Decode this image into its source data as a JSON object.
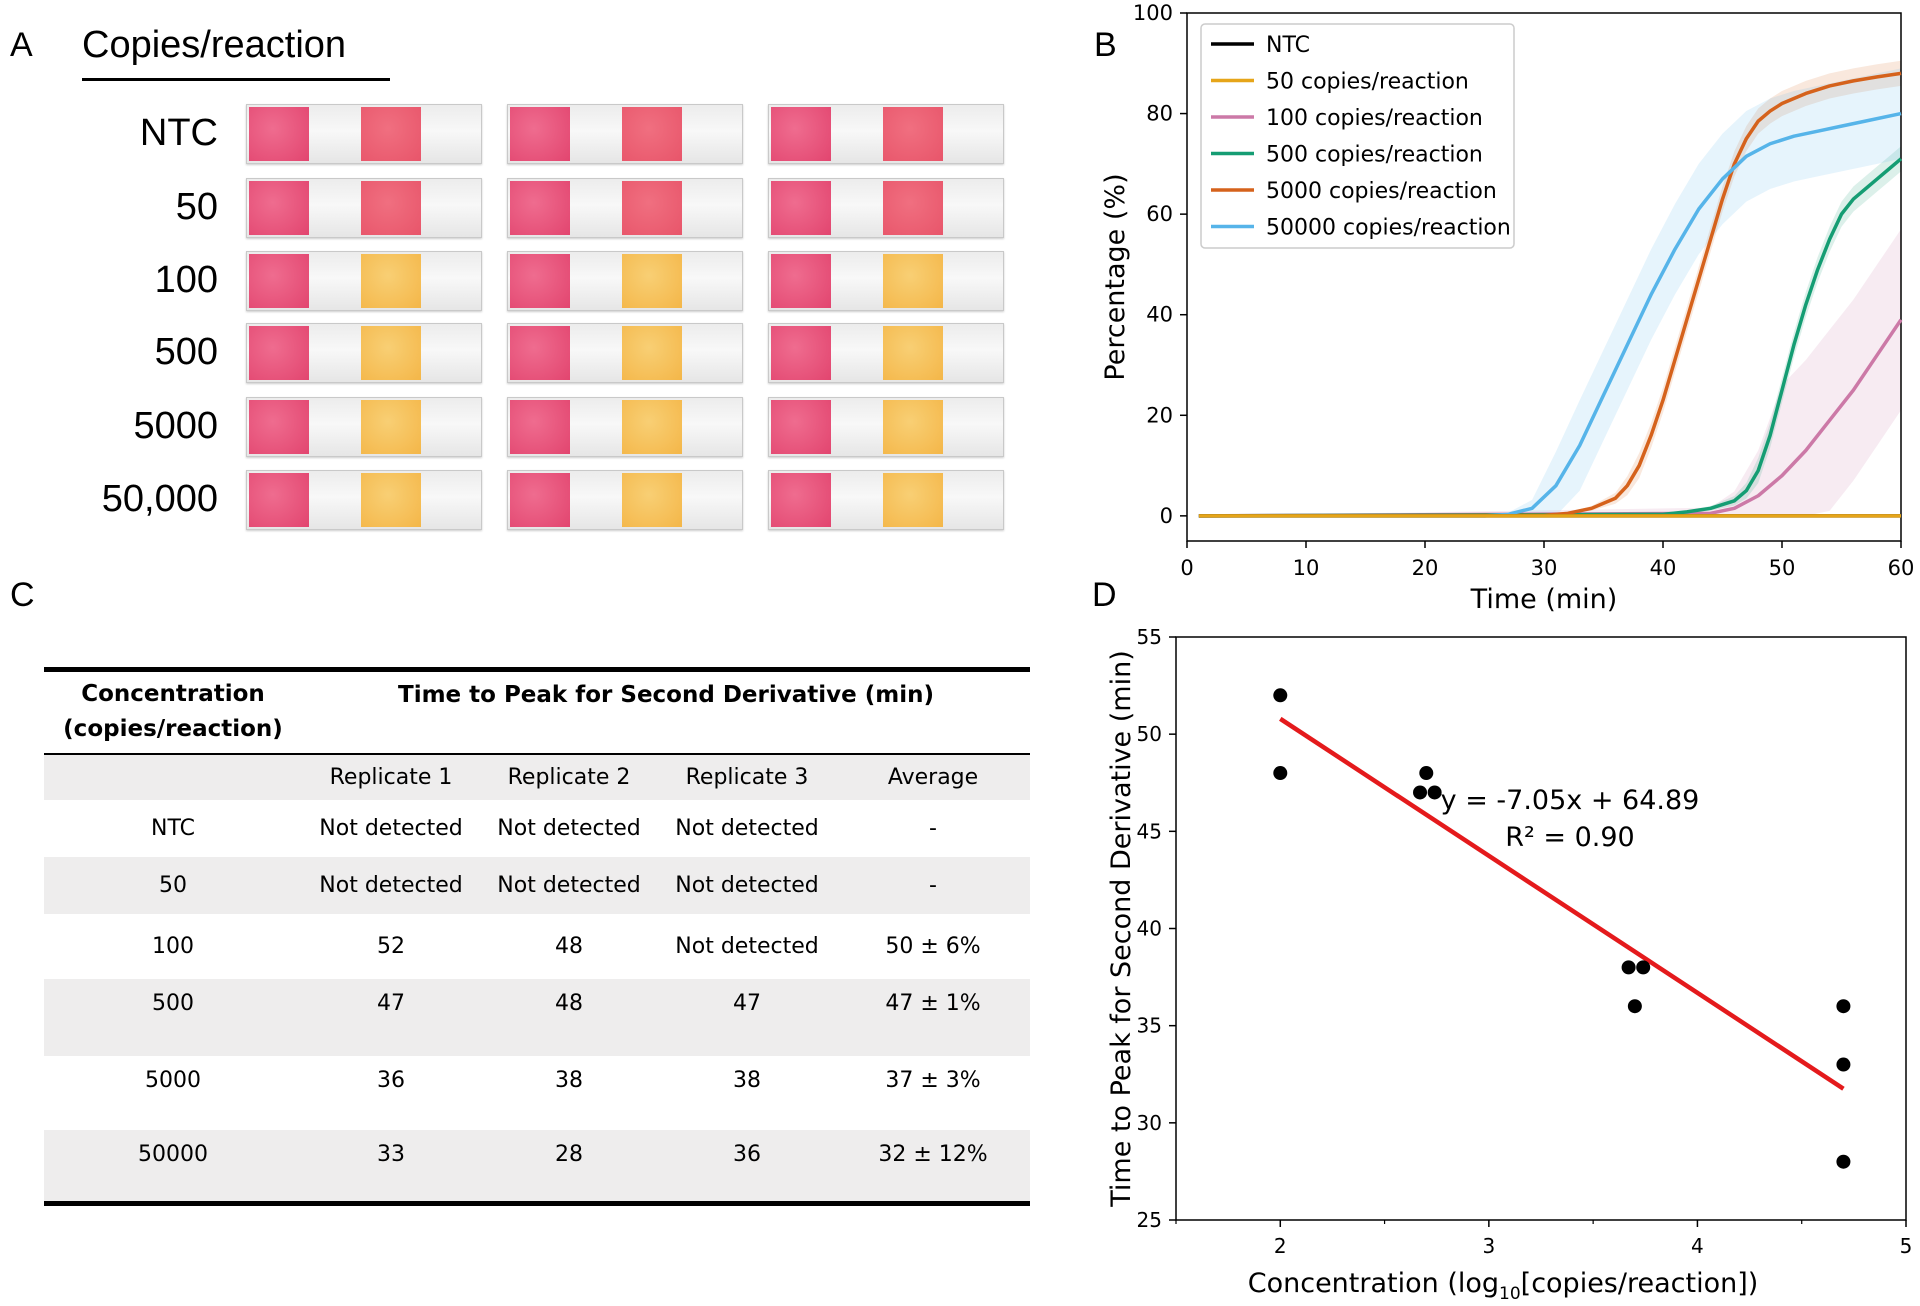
{
  "panels": {
    "a": "A",
    "b": "B",
    "c": "C",
    "d": "D"
  },
  "panel_a": {
    "title": "Copies/reaction",
    "rows": [
      {
        "label": "NTC",
        "result": "negative"
      },
      {
        "label": "50",
        "result": "negative"
      },
      {
        "label": "100",
        "result": "positive"
      },
      {
        "label": "500",
        "result": "positive"
      },
      {
        "label": "5000",
        "result": "positive"
      },
      {
        "label": "50,000",
        "result": "positive"
      }
    ],
    "colors": {
      "control_pad": "#e2456f",
      "negative_test_pad": "#e8556a",
      "positive_test_pad": "#f4b648",
      "strip": "#f1f1f1"
    }
  },
  "chart_data": [
    {
      "type": "line",
      "panel": "B",
      "title": "",
      "xlabel": "Time (min)",
      "ylabel": "Percentage (%)",
      "xlim": [
        0,
        60
      ],
      "ylim": [
        -5,
        100
      ],
      "xticks": [
        0,
        10,
        20,
        30,
        40,
        50,
        60
      ],
      "yticks": [
        0,
        20,
        40,
        60,
        80,
        100
      ],
      "legend_position": "top-left",
      "series": [
        {
          "name": "NTC",
          "color": "#000000",
          "x": [
            1,
            60
          ],
          "y": [
            0,
            0
          ],
          "band": null
        },
        {
          "name": "50 copies/reaction",
          "color": "#e6a519",
          "x": [
            1,
            60
          ],
          "y": [
            0,
            0
          ],
          "band": null
        },
        {
          "name": "100 copies/reaction",
          "color": "#cc79a7",
          "x": [
            1,
            44,
            46,
            48,
            50,
            52,
            54,
            56,
            58,
            60
          ],
          "y": [
            0,
            0.5,
            1.5,
            4,
            8,
            13,
            19,
            25,
            32,
            39
          ],
          "band": 18
        },
        {
          "name": "500 copies/reaction",
          "color": "#159d73",
          "x": [
            1,
            40,
            42,
            44,
            46,
            47,
            48,
            49,
            50,
            51,
            52,
            53,
            54,
            55,
            56,
            57,
            58,
            59,
            60
          ],
          "y": [
            0,
            0.3,
            0.8,
            1.5,
            3,
            5,
            9,
            16,
            25,
            34,
            42,
            49,
            55,
            60,
            63,
            65,
            67,
            69,
            71
          ],
          "band": 2.5
        },
        {
          "name": "5000 copies/reaction",
          "color": "#d5621c",
          "x": [
            1,
            30,
            32,
            34,
            36,
            37,
            38,
            39,
            40,
            41,
            42,
            43,
            44,
            45,
            46,
            47,
            48,
            49,
            50,
            52,
            54,
            56,
            58,
            60
          ],
          "y": [
            0,
            0.1,
            0.5,
            1.5,
            3.5,
            6,
            10,
            16,
            23,
            31,
            39,
            47,
            55,
            63,
            70,
            75,
            78.5,
            80.5,
            82,
            84,
            85.5,
            86.5,
            87.3,
            88
          ],
          "band": 2.5
        },
        {
          "name": "50000 copies/reaction",
          "color": "#56b4e9",
          "x": [
            1,
            25,
            27,
            29,
            31,
            33,
            35,
            37,
            39,
            41,
            43,
            45,
            47,
            49,
            51,
            53,
            55,
            57,
            60
          ],
          "y": [
            0,
            0,
            0.3,
            1.5,
            6,
            14,
            24,
            34,
            44,
            53,
            61,
            67,
            71.5,
            74,
            75.5,
            76.5,
            77.5,
            78.5,
            80
          ],
          "band": 9
        }
      ]
    },
    {
      "type": "scatter",
      "panel": "D",
      "xlabel": "Concentration (log10[copies/reaction])",
      "xlabel_parts": {
        "pre": "Concentration (log",
        "sub": "10",
        "post": "[copies/reaction])"
      },
      "ylabel": "Time to Peak for Second Derivative (min)",
      "xlim": [
        1.5,
        5
      ],
      "ylim": [
        25,
        55
      ],
      "xticks": [
        2,
        3,
        4,
        5
      ],
      "yticks": [
        25,
        30,
        35,
        40,
        45,
        50,
        55
      ],
      "points": [
        {
          "x": 2.0,
          "y": 52
        },
        {
          "x": 2.0,
          "y": 48
        },
        {
          "x": 2.7,
          "y": 48
        },
        {
          "x": 2.67,
          "y": 47
        },
        {
          "x": 2.74,
          "y": 47
        },
        {
          "x": 3.67,
          "y": 38
        },
        {
          "x": 3.74,
          "y": 38
        },
        {
          "x": 3.7,
          "y": 36
        },
        {
          "x": 4.7,
          "y": 36
        },
        {
          "x": 4.7,
          "y": 33
        },
        {
          "x": 4.7,
          "y": 28
        }
      ],
      "fit": {
        "slope": -7.05,
        "intercept": 64.89,
        "x_range": [
          2.0,
          4.7
        ],
        "color": "#e41a1c"
      },
      "equation": "y = -7.05x + 64.89",
      "r_squared": "R² = 0.90"
    }
  ],
  "table_c": {
    "col0_header_line1": "Concentration",
    "col0_header_line2": "(copies/reaction)",
    "span_header": "Time to Peak for Second Derivative (min)",
    "subheaders": [
      "Replicate 1",
      "Replicate 2",
      "Replicate 3",
      "Average"
    ],
    "rows": [
      {
        "concentration": "NTC",
        "rep1": "Not detected",
        "rep2": "Not detected",
        "rep3": "Not detected",
        "average": "-"
      },
      {
        "concentration": "50",
        "rep1": "Not detected",
        "rep2": "Not detected",
        "rep3": "Not detected",
        "average": "-"
      },
      {
        "concentration": "100",
        "rep1": "52",
        "rep2": "48",
        "rep3": "Not detected",
        "average": "50 ± 6%"
      },
      {
        "concentration": "500",
        "rep1": "47",
        "rep2": "48",
        "rep3": "47",
        "average": "47 ± 1%"
      },
      {
        "concentration": "5000",
        "rep1": "36",
        "rep2": "38",
        "rep3": "38",
        "average": "37 ± 3%"
      },
      {
        "concentration": "50000",
        "rep1": "33",
        "rep2": "28",
        "rep3": "36",
        "average": "32 ± 12%"
      }
    ]
  }
}
